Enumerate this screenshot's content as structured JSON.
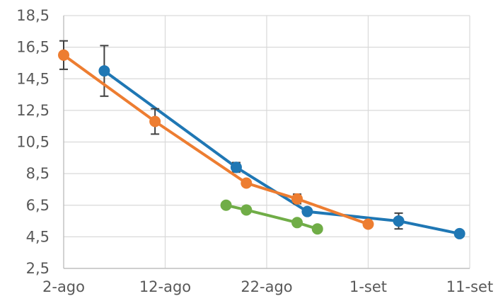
{
  "chart_data": {
    "type": "line",
    "title": "",
    "xlabel": "",
    "ylabel": "",
    "x_axis": {
      "type": "date",
      "range": [
        "2022-08-02",
        "2022-09-11"
      ],
      "ticks": [
        {
          "date": "2022-08-02",
          "label": "2-ago"
        },
        {
          "date": "2022-08-12",
          "label": "12-ago"
        },
        {
          "date": "2022-08-22",
          "label": "22-ago"
        },
        {
          "date": "2022-09-01",
          "label": "1-set"
        },
        {
          "date": "2022-09-11",
          "label": "11-set"
        }
      ]
    },
    "y_axis": {
      "range": [
        2.5,
        18.5
      ],
      "ticks": [
        "2,5",
        "4,5",
        "6,5",
        "8,5",
        "10,5",
        "12,5",
        "14,5",
        "16,5",
        "18,5"
      ],
      "tick_values": [
        2.5,
        4.5,
        6.5,
        8.5,
        10.5,
        12.5,
        14.5,
        16.5,
        18.5
      ]
    },
    "grid": {
      "vertical": true,
      "horizontal": true
    },
    "legend": "none",
    "series": [
      {
        "color": "#1f77b4",
        "points": [
          {
            "x": "2022-08-06",
            "y": 15.0,
            "err": 1.6
          },
          {
            "x": "2022-08-19",
            "y": 8.9,
            "err": 0.3
          },
          {
            "x": "2022-08-26",
            "y": 6.1,
            "err": null
          },
          {
            "x": "2022-09-04",
            "y": 5.5,
            "err": 0.5
          },
          {
            "x": "2022-09-10",
            "y": 4.7,
            "err": null
          }
        ]
      },
      {
        "color": "#ed7d31",
        "points": [
          {
            "x": "2022-08-02",
            "y": 16.0,
            "err": 0.9
          },
          {
            "x": "2022-08-11",
            "y": 11.8,
            "err": 0.8
          },
          {
            "x": "2022-08-20",
            "y": 7.9,
            "err": null
          },
          {
            "x": "2022-08-25",
            "y": 6.9,
            "err": 0.3
          },
          {
            "x": "2022-09-01",
            "y": 5.3,
            "err": null
          }
        ]
      },
      {
        "color": "#70ad47",
        "points": [
          {
            "x": "2022-08-18",
            "y": 6.5,
            "err": null
          },
          {
            "x": "2022-08-20",
            "y": 6.2,
            "err": null
          },
          {
            "x": "2022-08-25",
            "y": 5.4,
            "err": null
          },
          {
            "x": "2022-08-27",
            "y": 5.0,
            "err": null
          }
        ]
      }
    ]
  }
}
